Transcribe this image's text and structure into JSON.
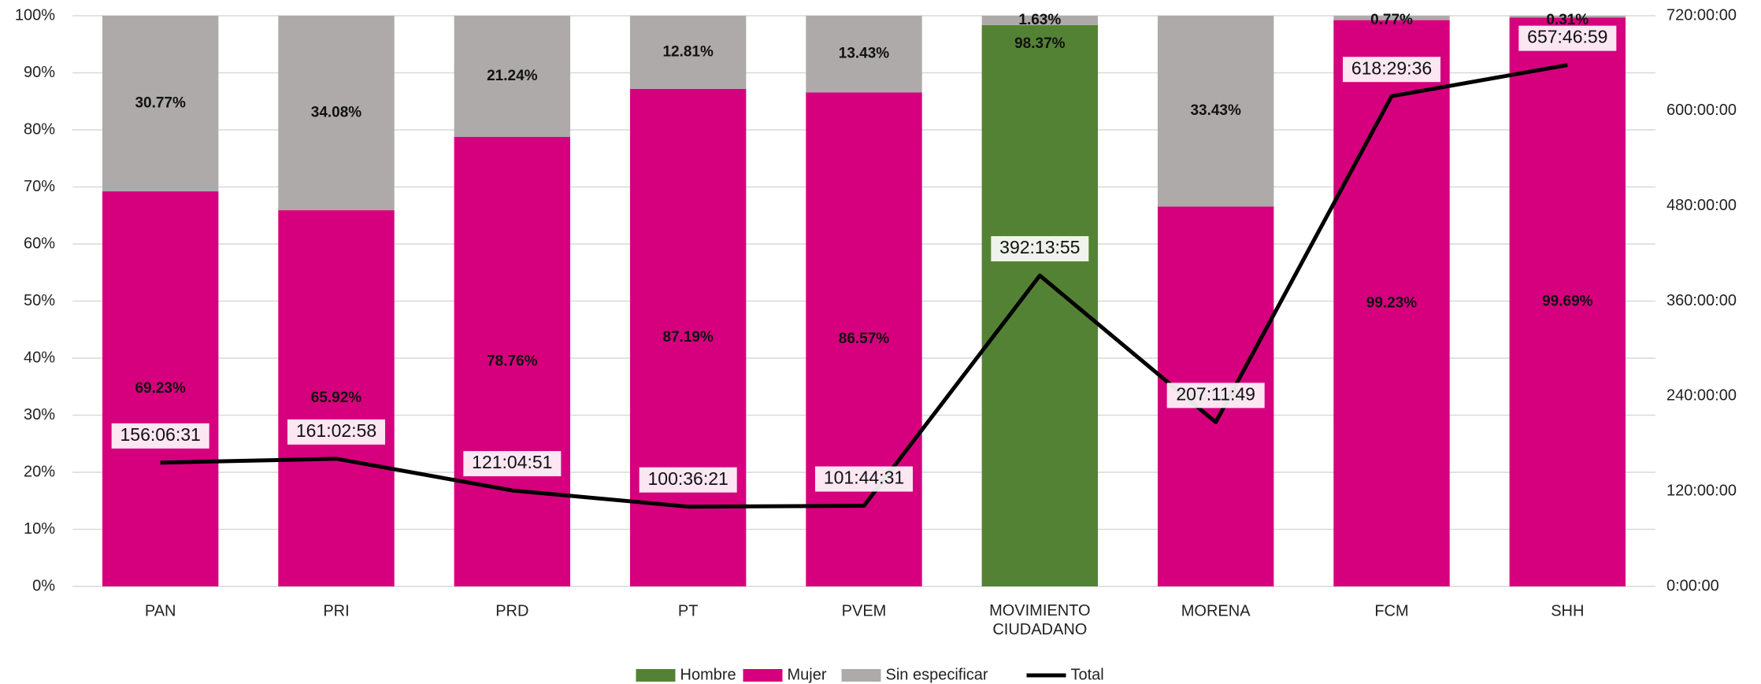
{
  "chart_data": {
    "type": "stacked_bar_line",
    "categories": [
      "PAN",
      "PRI",
      "PRD",
      "PT",
      "PVEM",
      "MOVIMIENTO CIUDADANO",
      "MORENA",
      "FCM",
      "SHH"
    ],
    "series": [
      {
        "name": "Hombre",
        "color": "#548235",
        "values": [
          null,
          null,
          null,
          null,
          null,
          98.37,
          null,
          null,
          null
        ],
        "value_labels": [
          null,
          null,
          null,
          null,
          null,
          "98.37%",
          null,
          null,
          null
        ]
      },
      {
        "name": "Mujer",
        "color": "#d6007e",
        "values": [
          69.23,
          65.92,
          78.76,
          87.19,
          86.57,
          null,
          66.57,
          99.23,
          99.69
        ],
        "value_labels": [
          "69.23%",
          "65.92%",
          "78.76%",
          "87.19%",
          "86.57%",
          null,
          "66.57%",
          "99.23%",
          "99.69%"
        ]
      },
      {
        "name": "Sin especificar",
        "color": "#aeaaaa",
        "values": [
          30.77,
          34.08,
          21.24,
          12.81,
          13.43,
          1.63,
          33.43,
          0.77,
          0.31
        ],
        "value_labels": [
          "30.77%",
          "34.08%",
          "21.24%",
          "12.81%",
          "13.43%",
          "1.63%",
          "33.43%",
          "0.77%",
          "0.31%"
        ]
      },
      {
        "name": "Total",
        "color": "#000000",
        "axis": "y2",
        "type": "line",
        "values": [
          156.1086,
          161.0494,
          121.0808,
          100.6058,
          101.7419,
          392.2319,
          207.1969,
          618.4933,
          657.7831
        ],
        "value_labels": [
          "156:06:31",
          "161:02:58",
          "121:04:51",
          "100:36:21",
          "101:44:31",
          "392:13:55",
          "207:11:49",
          "618:29:36",
          "657:46:59"
        ]
      }
    ],
    "ylim": [
      0,
      100
    ],
    "yticks": [
      {
        "value": 0,
        "label": "0%"
      },
      {
        "value": 10,
        "label": "10%"
      },
      {
        "value": 20,
        "label": "20%"
      },
      {
        "value": 30,
        "label": "30%"
      },
      {
        "value": 40,
        "label": "40%"
      },
      {
        "value": 50,
        "label": "50%"
      },
      {
        "value": 60,
        "label": "60%"
      },
      {
        "value": 70,
        "label": "70%"
      },
      {
        "value": 80,
        "label": "80%"
      },
      {
        "value": 90,
        "label": "90%"
      },
      {
        "value": 100,
        "label": "100%"
      }
    ],
    "y2lim": [
      0,
      720
    ],
    "y2ticks": [
      {
        "value": 0,
        "label": "0:00:00"
      },
      {
        "value": 120,
        "label": "120:00:00"
      },
      {
        "value": 240,
        "label": "240:00:00"
      },
      {
        "value": 360,
        "label": "360:00:00"
      },
      {
        "value": 480,
        "label": "480:00:00"
      },
      {
        "value": 600,
        "label": "600:00:00"
      },
      {
        "value": 720,
        "label": "720:00:00"
      }
    ],
    "grid": true,
    "legend": "bottom"
  }
}
